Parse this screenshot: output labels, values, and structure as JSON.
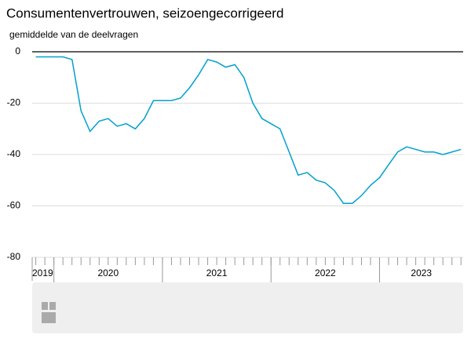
{
  "chart_data": {
    "type": "line",
    "title": "Consumentenvertrouwen, seizoengecorrigeerd",
    "y_label": "gemiddelde van de deelvragen",
    "x": [
      2019.833,
      2019.917,
      2020.0,
      2020.083,
      2020.167,
      2020.25,
      2020.333,
      2020.417,
      2020.5,
      2020.583,
      2020.667,
      2020.75,
      2020.833,
      2020.917,
      2021.0,
      2021.083,
      2021.167,
      2021.25,
      2021.333,
      2021.417,
      2021.5,
      2021.583,
      2021.667,
      2021.75,
      2021.833,
      2021.917,
      2022.0,
      2022.083,
      2022.167,
      2022.25,
      2022.333,
      2022.417,
      2022.5,
      2022.583,
      2022.667,
      2022.75,
      2022.833,
      2022.917,
      2023.0,
      2023.083,
      2023.167,
      2023.25,
      2023.333,
      2023.417,
      2023.5,
      2023.583,
      2023.667,
      2023.75
    ],
    "series": [
      {
        "name": "Consumentenvertrouwen",
        "color": "#00a1cd",
        "values": [
          -2,
          -2,
          -2,
          -2,
          -3,
          -23,
          -31,
          -27,
          -26,
          -29,
          -28,
          -30,
          -26,
          -19,
          -19,
          -19,
          -18,
          -14,
          -9,
          -3,
          -4,
          -6,
          -5,
          -10,
          -20,
          -26,
          -28,
          -30,
          -39,
          -48,
          -47,
          -50,
          -51,
          -54,
          -59,
          -59,
          -56,
          -52,
          -49,
          -44,
          -39,
          -37,
          -38,
          -39,
          -39,
          -40,
          -39,
          -38
        ]
      }
    ],
    "xlim": [
      2019.8,
      2023.77
    ],
    "xticks": [
      2020,
      2021,
      2022,
      2023
    ],
    "x_year_labels": [
      2019,
      2020,
      2021,
      2022,
      2023
    ],
    "ylim": [
      -80,
      0
    ],
    "yticks": [
      0,
      -20,
      -40,
      -60,
      -80
    ],
    "grid": true
  }
}
